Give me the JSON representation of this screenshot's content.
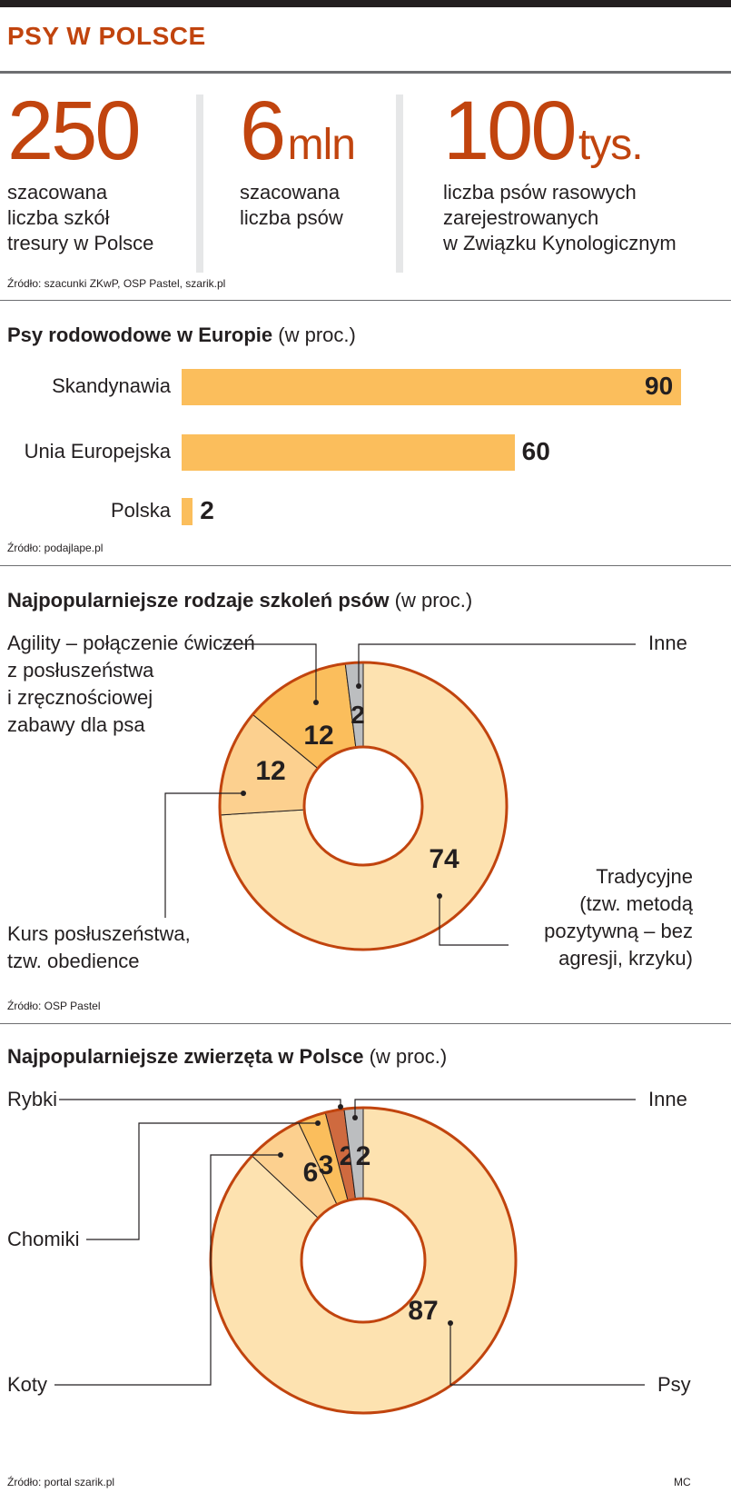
{
  "title": "PSY W POLSCE",
  "stats": [
    {
      "number": "250",
      "unit": "",
      "desc": [
        "szacowana",
        "liczba szkół",
        "tresury w Polsce"
      ]
    },
    {
      "number": "6",
      "unit": "mln",
      "desc": [
        "szacowana",
        "liczba psów"
      ]
    },
    {
      "number": "100",
      "unit": "tys.",
      "desc": [
        "liczba psów rasowych",
        "zarejestrowanych",
        "w Związku Kynologicznym"
      ]
    }
  ],
  "stats_source": "Źródło: szacunki ZKwP, OSP Pastel, szarik.pl",
  "colors": {
    "accent": "#c1440e",
    "bar": "#fbbe5c",
    "light": "#fde2b0",
    "mid": "#fcd08f",
    "dark": "#fbbe5c",
    "gray": "#bcbec0",
    "brick": "#cf6a3f"
  },
  "chart_data": [
    {
      "type": "bar",
      "title_bold": "Psy rodowodowe w Europie",
      "title_rest": "(w proc.)",
      "categories": [
        "Skandynawia",
        "Unia Europejska",
        "Polska"
      ],
      "values": [
        90,
        60,
        2
      ],
      "xlim": [
        0,
        90
      ],
      "source": "Źródło: podajlape.pl"
    },
    {
      "type": "pie",
      "title_bold": "Najpopularniejsze rodzaje szkoleń psów",
      "title_rest": "(w proc.)",
      "slices": [
        {
          "name": "Tradycyjne (tzw. metodą pozytywną – bez agresji, krzyku)",
          "value": 74
        },
        {
          "name": "Kurs posłuszeństwa, tzw. obedience",
          "value": 12
        },
        {
          "name": "Agility – połączenie ćwiczeń z posłuszeństwa i zręcznościowej zabawy dla psa",
          "value": 12
        },
        {
          "name": "Inne",
          "value": 2
        }
      ],
      "labels": {
        "agility": [
          "Agility – połączenie ćwiczeń",
          "z posłuszeństwa",
          "i zręcznościowej",
          "zabawy dla psa"
        ],
        "inne": "Inne",
        "kurs": [
          "Kurs posłuszeństwa,",
          "tzw. obedience"
        ],
        "tradycyjne": [
          "Tradycyjne",
          "(tzw. metodą",
          "pozytywną – bez",
          "agresji, krzyku)"
        ]
      },
      "source": "Źródło: OSP Pastel"
    },
    {
      "type": "pie",
      "title_bold": "Najpopularniejsze zwierzęta w Polsce",
      "title_rest": "(w proc.)",
      "slices": [
        {
          "name": "Psy",
          "value": 87
        },
        {
          "name": "Koty",
          "value": 6
        },
        {
          "name": "Chomiki",
          "value": 3
        },
        {
          "name": "Rybki",
          "value": 2
        },
        {
          "name": "Inne",
          "value": 2
        }
      ],
      "source": "Źródło: portal szarik.pl"
    }
  ],
  "credit": "MC"
}
